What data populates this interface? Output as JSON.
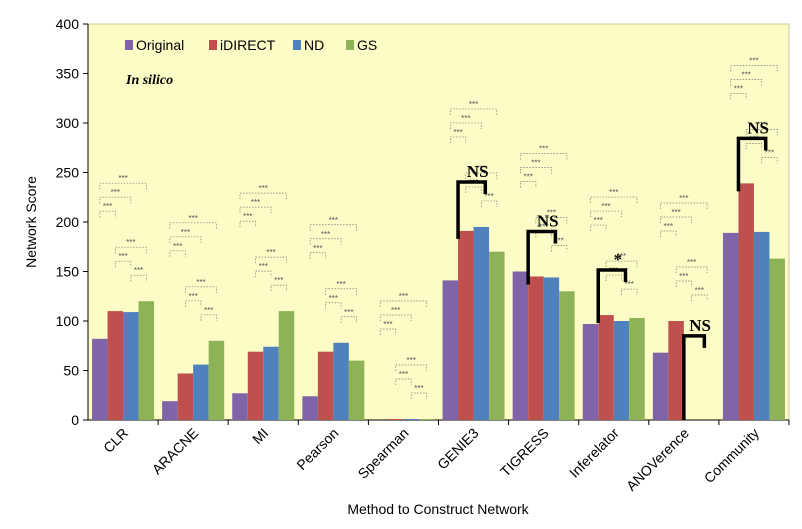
{
  "chart_data": {
    "type": "bar",
    "title": "",
    "xlabel": "Method to Construct Network",
    "ylabel": "Network Score",
    "ylim": [
      0,
      400
    ],
    "yticks": [
      0,
      50,
      100,
      150,
      200,
      250,
      300,
      350,
      400
    ],
    "grid": false,
    "legend_position": "top-left",
    "annotation": "In silico",
    "categories": [
      "CLR",
      "ARACNE",
      "MI",
      "Pearson",
      "Spearman",
      "GENIE3",
      "TIGRESS",
      "Inferelator",
      "ANOVerence",
      "Community"
    ],
    "series": [
      {
        "name": "Original",
        "color": "#7f64a8",
        "values": [
          82,
          19,
          27,
          24,
          0,
          141,
          150,
          97,
          68,
          189
        ]
      },
      {
        "name": "iDIRECT",
        "color": "#c0504d",
        "values": [
          110,
          47,
          69,
          69,
          1,
          191,
          145,
          106,
          100,
          239
        ]
      },
      {
        "name": "ND",
        "color": "#4f81bd",
        "values": [
          109,
          56,
          74,
          78,
          1,
          195,
          144,
          100,
          0,
          190
        ]
      },
      {
        "name": "GS",
        "color": "#8db356",
        "values": [
          120,
          80,
          110,
          60,
          1,
          170,
          130,
          103,
          0,
          163
        ]
      }
    ],
    "significance": {
      "minor_label": "***",
      "brackets": [
        {
          "category": "GENIE3",
          "label": "NS"
        },
        {
          "category": "TIGRESS",
          "label": "NS"
        },
        {
          "category": "Inferelator",
          "label": "*"
        },
        {
          "category": "ANOVerence",
          "label": "NS"
        },
        {
          "category": "Community",
          "label": "NS"
        }
      ]
    }
  }
}
